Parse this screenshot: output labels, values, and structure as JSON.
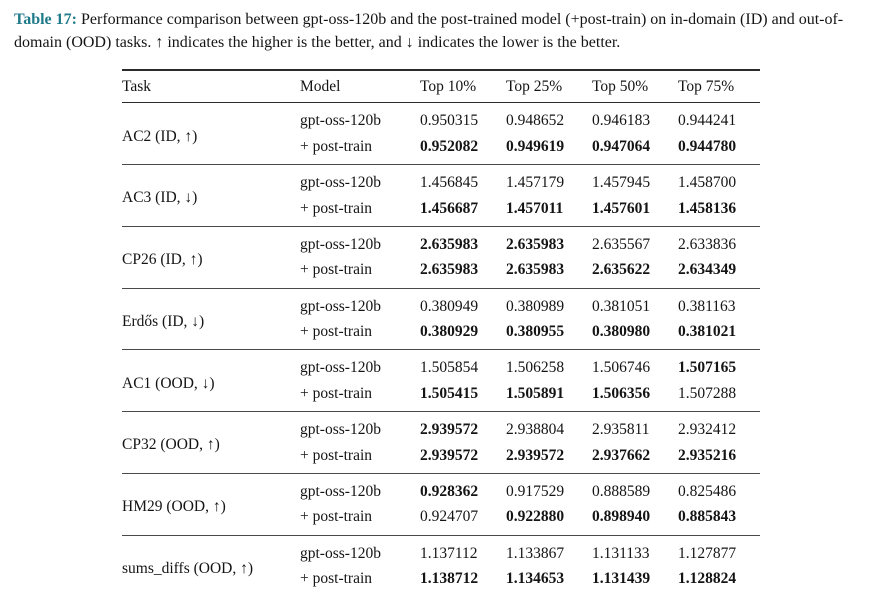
{
  "caption": {
    "label": "Table 17:",
    "text": "Performance comparison between gpt-oss-120b and the post-trained model (+post-train) on in-domain (ID) and out-of-domain (OOD) tasks. ↑ indicates the higher is the better, and ↓ indicates the lower is the better."
  },
  "colors": {
    "caption_accent": "#1f7a8a",
    "rule": "#2b2b2b",
    "text": "#141414"
  },
  "table": {
    "headers": [
      "Task",
      "Model",
      "Top 10%",
      "Top 25%",
      "Top 50%",
      "Top 75%"
    ],
    "groups": [
      {
        "task": "AC2 (ID, ↑)",
        "rows": [
          {
            "model": "gpt-oss-120b",
            "values": [
              "0.950315",
              "0.948652",
              "0.946183",
              "0.944241"
            ],
            "bold": [
              false,
              false,
              false,
              false
            ]
          },
          {
            "model": "+ post-train",
            "values": [
              "0.952082",
              "0.949619",
              "0.947064",
              "0.944780"
            ],
            "bold": [
              true,
              true,
              true,
              true
            ]
          }
        ]
      },
      {
        "task": "AC3 (ID, ↓)",
        "rows": [
          {
            "model": "gpt-oss-120b",
            "values": [
              "1.456845",
              "1.457179",
              "1.457945",
              "1.458700"
            ],
            "bold": [
              false,
              false,
              false,
              false
            ]
          },
          {
            "model": "+ post-train",
            "values": [
              "1.456687",
              "1.457011",
              "1.457601",
              "1.458136"
            ],
            "bold": [
              true,
              true,
              true,
              true
            ]
          }
        ]
      },
      {
        "task": "CP26 (ID, ↑)",
        "rows": [
          {
            "model": "gpt-oss-120b",
            "values": [
              "2.635983",
              "2.635983",
              "2.635567",
              "2.633836"
            ],
            "bold": [
              true,
              true,
              false,
              false
            ]
          },
          {
            "model": "+ post-train",
            "values": [
              "2.635983",
              "2.635983",
              "2.635622",
              "2.634349"
            ],
            "bold": [
              true,
              true,
              true,
              true
            ]
          }
        ]
      },
      {
        "task": "Erdős (ID, ↓)",
        "rows": [
          {
            "model": "gpt-oss-120b",
            "values": [
              "0.380949",
              "0.380989",
              "0.381051",
              "0.381163"
            ],
            "bold": [
              false,
              false,
              false,
              false
            ]
          },
          {
            "model": "+ post-train",
            "values": [
              "0.380929",
              "0.380955",
              "0.380980",
              "0.381021"
            ],
            "bold": [
              true,
              true,
              true,
              true
            ]
          }
        ]
      },
      {
        "task": "AC1 (OOD, ↓)",
        "rows": [
          {
            "model": "gpt-oss-120b",
            "values": [
              "1.505854",
              "1.506258",
              "1.506746",
              "1.507165"
            ],
            "bold": [
              false,
              false,
              false,
              true
            ]
          },
          {
            "model": "+ post-train",
            "values": [
              "1.505415",
              "1.505891",
              "1.506356",
              "1.507288"
            ],
            "bold": [
              true,
              true,
              true,
              false
            ]
          }
        ]
      },
      {
        "task": "CP32 (OOD, ↑)",
        "rows": [
          {
            "model": "gpt-oss-120b",
            "values": [
              "2.939572",
              "2.938804",
              "2.935811",
              "2.932412"
            ],
            "bold": [
              true,
              false,
              false,
              false
            ]
          },
          {
            "model": "+ post-train",
            "values": [
              "2.939572",
              "2.939572",
              "2.937662",
              "2.935216"
            ],
            "bold": [
              true,
              true,
              true,
              true
            ]
          }
        ]
      },
      {
        "task": "HM29 (OOD, ↑)",
        "rows": [
          {
            "model": "gpt-oss-120b",
            "values": [
              "0.928362",
              "0.917529",
              "0.888589",
              "0.825486"
            ],
            "bold": [
              true,
              false,
              false,
              false
            ]
          },
          {
            "model": "+ post-train",
            "values": [
              "0.924707",
              "0.922880",
              "0.898940",
              "0.885843"
            ],
            "bold": [
              false,
              true,
              true,
              true
            ]
          }
        ]
      },
      {
        "task": "sums_diffs (OOD, ↑)",
        "rows": [
          {
            "model": "gpt-oss-120b",
            "values": [
              "1.137112",
              "1.133867",
              "1.131133",
              "1.127877"
            ],
            "bold": [
              false,
              false,
              false,
              false
            ]
          },
          {
            "model": "+ post-train",
            "values": [
              "1.138712",
              "1.134653",
              "1.131439",
              "1.128824"
            ],
            "bold": [
              true,
              true,
              true,
              true
            ]
          }
        ]
      }
    ]
  }
}
